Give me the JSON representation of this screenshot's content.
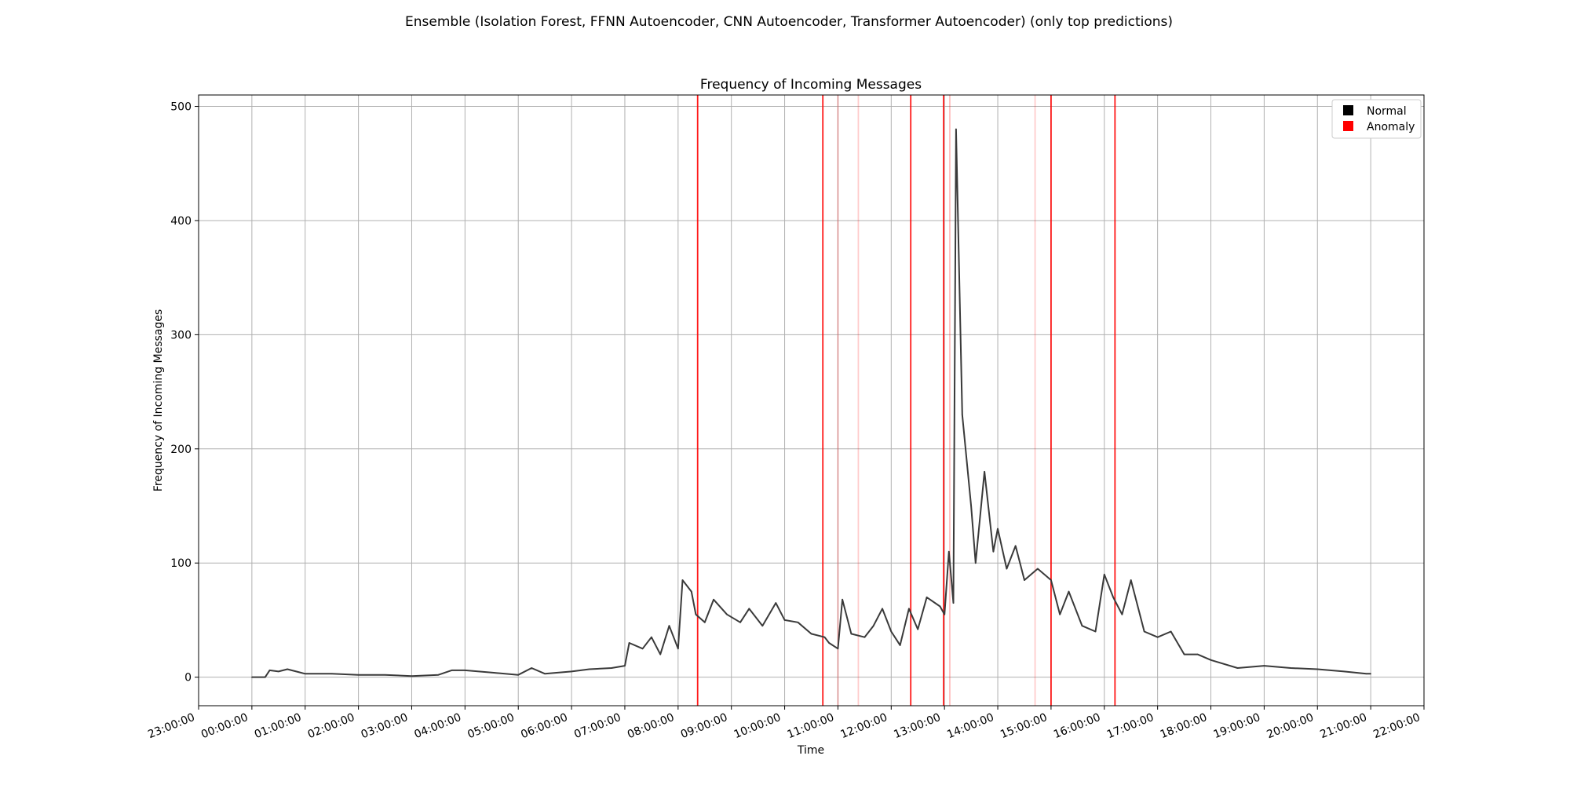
{
  "figure": {
    "suptitle": "Ensemble (Isolation Forest, FFNN Autoencoder, CNN Autoencoder, Transformer Autoencoder) (only top predictions)"
  },
  "chart_data": {
    "type": "line",
    "title": "Frequency of Incoming Messages",
    "xlabel": "Time",
    "ylabel": "Frequency of Incoming Messages",
    "xlim": [
      "23:00:00",
      "22:00:00"
    ],
    "ylim": [
      -25,
      510
    ],
    "grid": true,
    "legend_position": "top-right",
    "legend": [
      {
        "label": "Normal",
        "color": "#000000"
      },
      {
        "label": "Anomaly",
        "color": "#ff0000"
      }
    ],
    "x_ticks": [
      "23:00:00",
      "00:00:00",
      "01:00:00",
      "02:00:00",
      "03:00:00",
      "04:00:00",
      "05:00:00",
      "06:00:00",
      "07:00:00",
      "08:00:00",
      "09:00:00",
      "10:00:00",
      "11:00:00",
      "12:00:00",
      "13:00:00",
      "14:00:00",
      "15:00:00",
      "16:00:00",
      "17:00:00",
      "18:00:00",
      "19:00:00",
      "20:00:00",
      "21:00:00",
      "22:00:00"
    ],
    "y_ticks": [
      0,
      100,
      200,
      300,
      400,
      500
    ],
    "series": [
      {
        "color": "#3a3a3a",
        "points": [
          [
            "00:00:00",
            0
          ],
          [
            "00:15:00",
            0
          ],
          [
            "00:20:00",
            6
          ],
          [
            "00:30:00",
            5
          ],
          [
            "00:40:00",
            7
          ],
          [
            "01:00:00",
            3
          ],
          [
            "01:30:00",
            3
          ],
          [
            "02:00:00",
            2
          ],
          [
            "02:30:00",
            2
          ],
          [
            "03:00:00",
            1
          ],
          [
            "03:30:00",
            2
          ],
          [
            "03:45:00",
            6
          ],
          [
            "04:00:00",
            6
          ],
          [
            "04:30:00",
            4
          ],
          [
            "05:00:00",
            2
          ],
          [
            "05:15:00",
            8
          ],
          [
            "05:30:00",
            3
          ],
          [
            "06:00:00",
            5
          ],
          [
            "06:20:00",
            7
          ],
          [
            "06:45:00",
            8
          ],
          [
            "07:00:00",
            10
          ],
          [
            "07:05:00",
            30
          ],
          [
            "07:20:00",
            25
          ],
          [
            "07:30:00",
            35
          ],
          [
            "07:40:00",
            20
          ],
          [
            "07:50:00",
            45
          ],
          [
            "08:00:00",
            25
          ],
          [
            "08:05:00",
            85
          ],
          [
            "08:15:00",
            75
          ],
          [
            "08:20:00",
            55
          ],
          [
            "08:30:00",
            48
          ],
          [
            "08:40:00",
            68
          ],
          [
            "08:55:00",
            55
          ],
          [
            "09:10:00",
            48
          ],
          [
            "09:20:00",
            60
          ],
          [
            "09:35:00",
            45
          ],
          [
            "09:50:00",
            65
          ],
          [
            "10:00:00",
            50
          ],
          [
            "10:15:00",
            48
          ],
          [
            "10:30:00",
            38
          ],
          [
            "10:45:00",
            35
          ],
          [
            "10:50:00",
            30
          ],
          [
            "11:00:00",
            25
          ],
          [
            "11:05:00",
            68
          ],
          [
            "11:15:00",
            38
          ],
          [
            "11:30:00",
            35
          ],
          [
            "11:40:00",
            45
          ],
          [
            "11:50:00",
            60
          ],
          [
            "12:00:00",
            40
          ],
          [
            "12:10:00",
            28
          ],
          [
            "12:20:00",
            60
          ],
          [
            "12:30:00",
            42
          ],
          [
            "12:40:00",
            70
          ],
          [
            "12:55:00",
            62
          ],
          [
            "13:00:00",
            55
          ],
          [
            "13:05:00",
            110
          ],
          [
            "13:10:00",
            65
          ],
          [
            "13:13:00",
            480
          ],
          [
            "13:20:00",
            230
          ],
          [
            "13:30:00",
            150
          ],
          [
            "13:35:00",
            100
          ],
          [
            "13:45:00",
            180
          ],
          [
            "13:55:00",
            110
          ],
          [
            "14:00:00",
            130
          ],
          [
            "14:10:00",
            95
          ],
          [
            "14:20:00",
            115
          ],
          [
            "14:30:00",
            85
          ],
          [
            "14:45:00",
            95
          ],
          [
            "15:00:00",
            85
          ],
          [
            "15:10:00",
            55
          ],
          [
            "15:20:00",
            75
          ],
          [
            "15:35:00",
            45
          ],
          [
            "15:50:00",
            40
          ],
          [
            "16:00:00",
            90
          ],
          [
            "16:10:00",
            70
          ],
          [
            "16:20:00",
            55
          ],
          [
            "16:30:00",
            85
          ],
          [
            "16:45:00",
            40
          ],
          [
            "17:00:00",
            35
          ],
          [
            "17:15:00",
            40
          ],
          [
            "17:30:00",
            20
          ],
          [
            "17:45:00",
            20
          ],
          [
            "18:00:00",
            15
          ],
          [
            "18:30:00",
            8
          ],
          [
            "19:00:00",
            10
          ],
          [
            "19:30:00",
            8
          ],
          [
            "20:00:00",
            7
          ],
          [
            "20:30:00",
            5
          ],
          [
            "20:55:00",
            3
          ],
          [
            "21:00:00",
            3
          ]
        ]
      }
    ],
    "anomalies": [
      {
        "time": "08:22:00",
        "color": "#ff0000",
        "opacity": 0.9
      },
      {
        "time": "10:43:00",
        "color": "#ff0000",
        "opacity": 0.9
      },
      {
        "time": "11:00:00",
        "color": "#ff0000",
        "opacity": 0.25
      },
      {
        "time": "11:23:00",
        "color": "#ff0000",
        "opacity": 0.2
      },
      {
        "time": "12:22:00",
        "color": "#ff0000",
        "opacity": 0.9
      },
      {
        "time": "12:59:00",
        "color": "#ff0000",
        "opacity": 0.9
      },
      {
        "time": "13:06:00",
        "color": "#ff0000",
        "opacity": 0.25
      },
      {
        "time": "14:42:00",
        "color": "#ff0000",
        "opacity": 0.2
      },
      {
        "time": "15:00:00",
        "color": "#ff0000",
        "opacity": 0.9
      },
      {
        "time": "16:12:00",
        "color": "#ff0000",
        "opacity": 0.9
      }
    ]
  }
}
